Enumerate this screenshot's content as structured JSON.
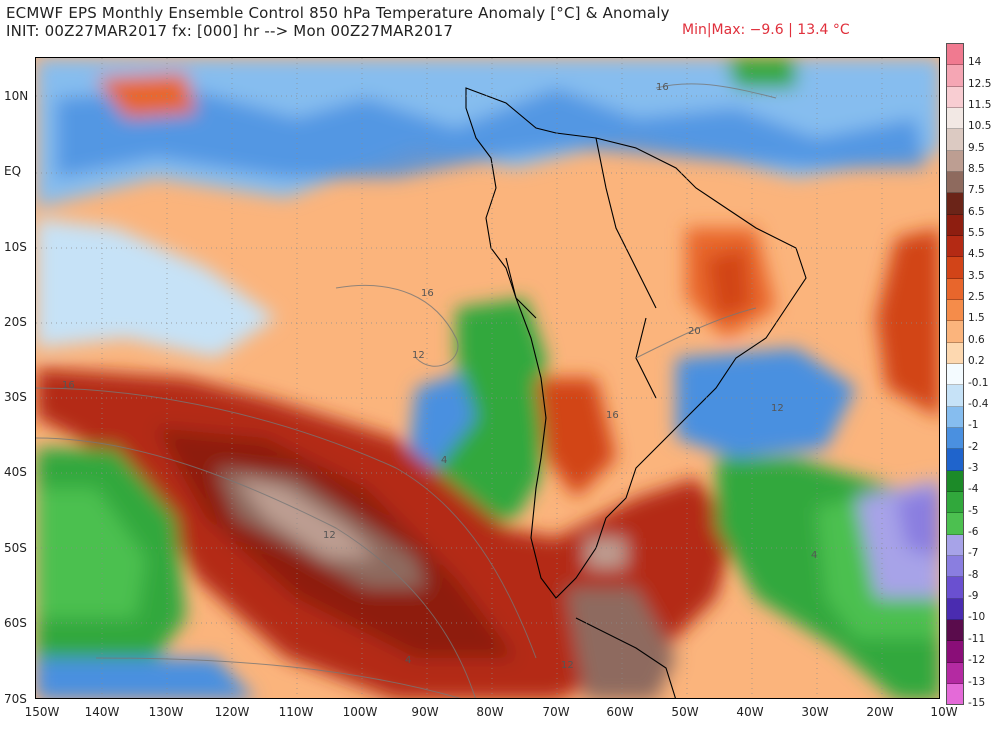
{
  "header": {
    "title_line1": "ECMWF EPS Monthly Ensemble Control 850 hPa Temperature Anomaly [°C] & Anomaly",
    "title_line2": "INIT: 00Z27MAR2017 fx: [000] hr --> Mon 00Z27MAR2017",
    "minmax": "Min|Max: −9.6 | 13.4 °C"
  },
  "map": {
    "lat_labels": [
      "10N",
      "EQ",
      "10S",
      "20S",
      "30S",
      "40S",
      "50S",
      "60S",
      "70S"
    ],
    "lon_labels": [
      "150W",
      "140W",
      "130W",
      "120W",
      "110W",
      "100W",
      "90W",
      "80W",
      "70W",
      "60W",
      "50W",
      "40W",
      "30W",
      "20W",
      "10W"
    ],
    "contour_labels": [
      "16",
      "16",
      "12",
      "16",
      "20",
      "16",
      "12",
      "12",
      "4",
      "4",
      "4",
      "12"
    ]
  },
  "colorbar": {
    "levels": [
      "14",
      "12.5",
      "11.5",
      "10.5",
      "9.5",
      "8.5",
      "7.5",
      "6.5",
      "5.5",
      "4.5",
      "3.5",
      "2.5",
      "1.5",
      "0.6",
      "0.2",
      "-0.1",
      "-0.4",
      "-1",
      "-2",
      "-3",
      "-4",
      "-5",
      "-6",
      "-7",
      "-8",
      "-9",
      "-10",
      "-11",
      "-12",
      "-13",
      "-15"
    ],
    "colors": [
      "#f07a90",
      "#f5a6b4",
      "#f8cdd2",
      "#f2e8e4",
      "#dccac2",
      "#bd9e92",
      "#8e6a5e",
      "#6b2418",
      "#8e1e10",
      "#b42a14",
      "#d24418",
      "#e8662c",
      "#f58c4a",
      "#fbb47c",
      "#fdd8b0",
      "#f4fbff",
      "#c6e2f7",
      "#86bdef",
      "#4a90e0",
      "#1f64cc",
      "#1c8a28",
      "#31a83c",
      "#4cc050",
      "#a7a3e8",
      "#8a7ee0",
      "#6a50d0",
      "#4a2cb0",
      "#5a0c4c",
      "#8a0e78",
      "#b42aa2",
      "#e46ad8"
    ]
  }
}
